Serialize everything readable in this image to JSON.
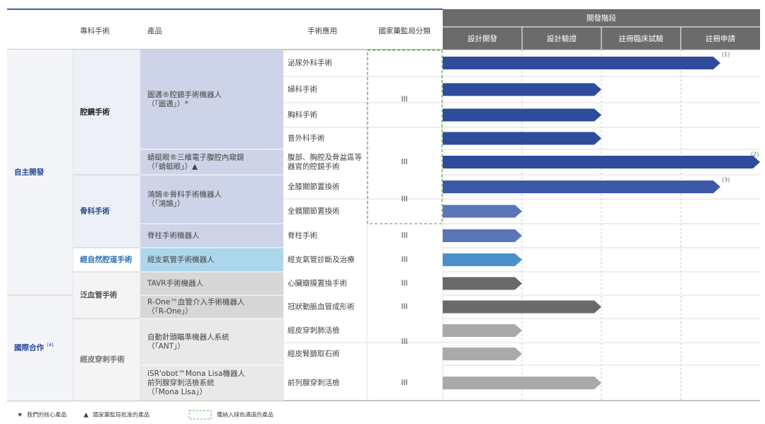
{
  "header": {
    "columns": [
      "專科手術",
      "產品",
      "手術應用",
      "國家藥監局分類"
    ],
    "stage_group": "開發階段",
    "stages": [
      "設計開發",
      "設計驗證",
      "註冊臨床試驗",
      "註冊申請"
    ]
  },
  "groups": [
    {
      "label": "自主開發"
    },
    {
      "label": "國際合作",
      "note": "(4)"
    }
  ],
  "specialties": [
    "腔鏡手術",
    "骨科手術",
    "經自然腔道手術",
    "泛血管手術",
    "經皮穿刺手術"
  ],
  "products": [
    {
      "lines": [
        "圖邁®腔鏡手術機器人",
        "（「圖邁」）*"
      ],
      "class": "III"
    },
    {
      "lines": [
        "蜻蜓眼®三維電子腹腔內窺鏡",
        "（「蜻蜓眼」）▲"
      ],
      "class": "III"
    },
    {
      "lines": [
        "鴻鵠®骨科手術機器人",
        "（「鴻鵠」）"
      ],
      "class": "III"
    },
    {
      "lines": [
        "脊柱手術機器人"
      ],
      "class": "III"
    },
    {
      "lines": [
        "經支氣管手術機器人"
      ],
      "class": "III"
    },
    {
      "lines": [
        "TAVR手術機器人"
      ],
      "class": "III"
    },
    {
      "lines": [
        "R-One™血管介入手術機器人",
        "（「R-One」）"
      ],
      "class": "III"
    },
    {
      "lines": [
        "自動針頭瞄準機器人系統",
        "（「ANT」）"
      ],
      "class": "III"
    },
    {
      "lines": [
        "iSR'obot™Mona Lisa機器人",
        "前列腺穿刺活檢系統",
        "（「Mona Lisa」）"
      ],
      "class": "III"
    }
  ],
  "rows": [
    {
      "application": [
        "泌尿外科手術"
      ],
      "progress": 3.5,
      "note": "(1)"
    },
    {
      "application": [
        "婦科手術"
      ],
      "progress": 2
    },
    {
      "application": [
        "胸科手術"
      ],
      "progress": 2
    },
    {
      "application": [
        "普外科手術"
      ],
      "progress": 2
    },
    {
      "application": [
        "腹部、胸腔及骨盆區等",
        "器官的腔鏡手術"
      ],
      "progress": 4,
      "note": "(2)"
    },
    {
      "application": [
        "全膝關節置換術"
      ],
      "progress": 3.5,
      "note": "(3)"
    },
    {
      "application": [
        "全髖關節置換術"
      ],
      "progress": 1
    },
    {
      "application": [
        "脊柱手術"
      ],
      "progress": 1
    },
    {
      "application": [
        "經支氣管診斷及治療"
      ],
      "progress": 1
    },
    {
      "application": [
        "心臟瓣膜置換手術"
      ],
      "progress": 1
    },
    {
      "application": [
        "冠狀動脈血管成形術"
      ],
      "progress": 2
    },
    {
      "application": [
        "經皮穿刺肺活檢"
      ],
      "progress": 1
    },
    {
      "application": [
        "經皮腎鏡取石術"
      ],
      "progress": 1
    },
    {
      "application": [
        "前列腺穿刺活檢"
      ],
      "progress": 2
    }
  ],
  "legend": [
    {
      "symbol": "★",
      "label": "我們的核心產品"
    },
    {
      "symbol": "▲",
      "label": "國家藥監局批准的產品"
    },
    {
      "label": "獲納入綠色通道的產品"
    }
  ]
}
